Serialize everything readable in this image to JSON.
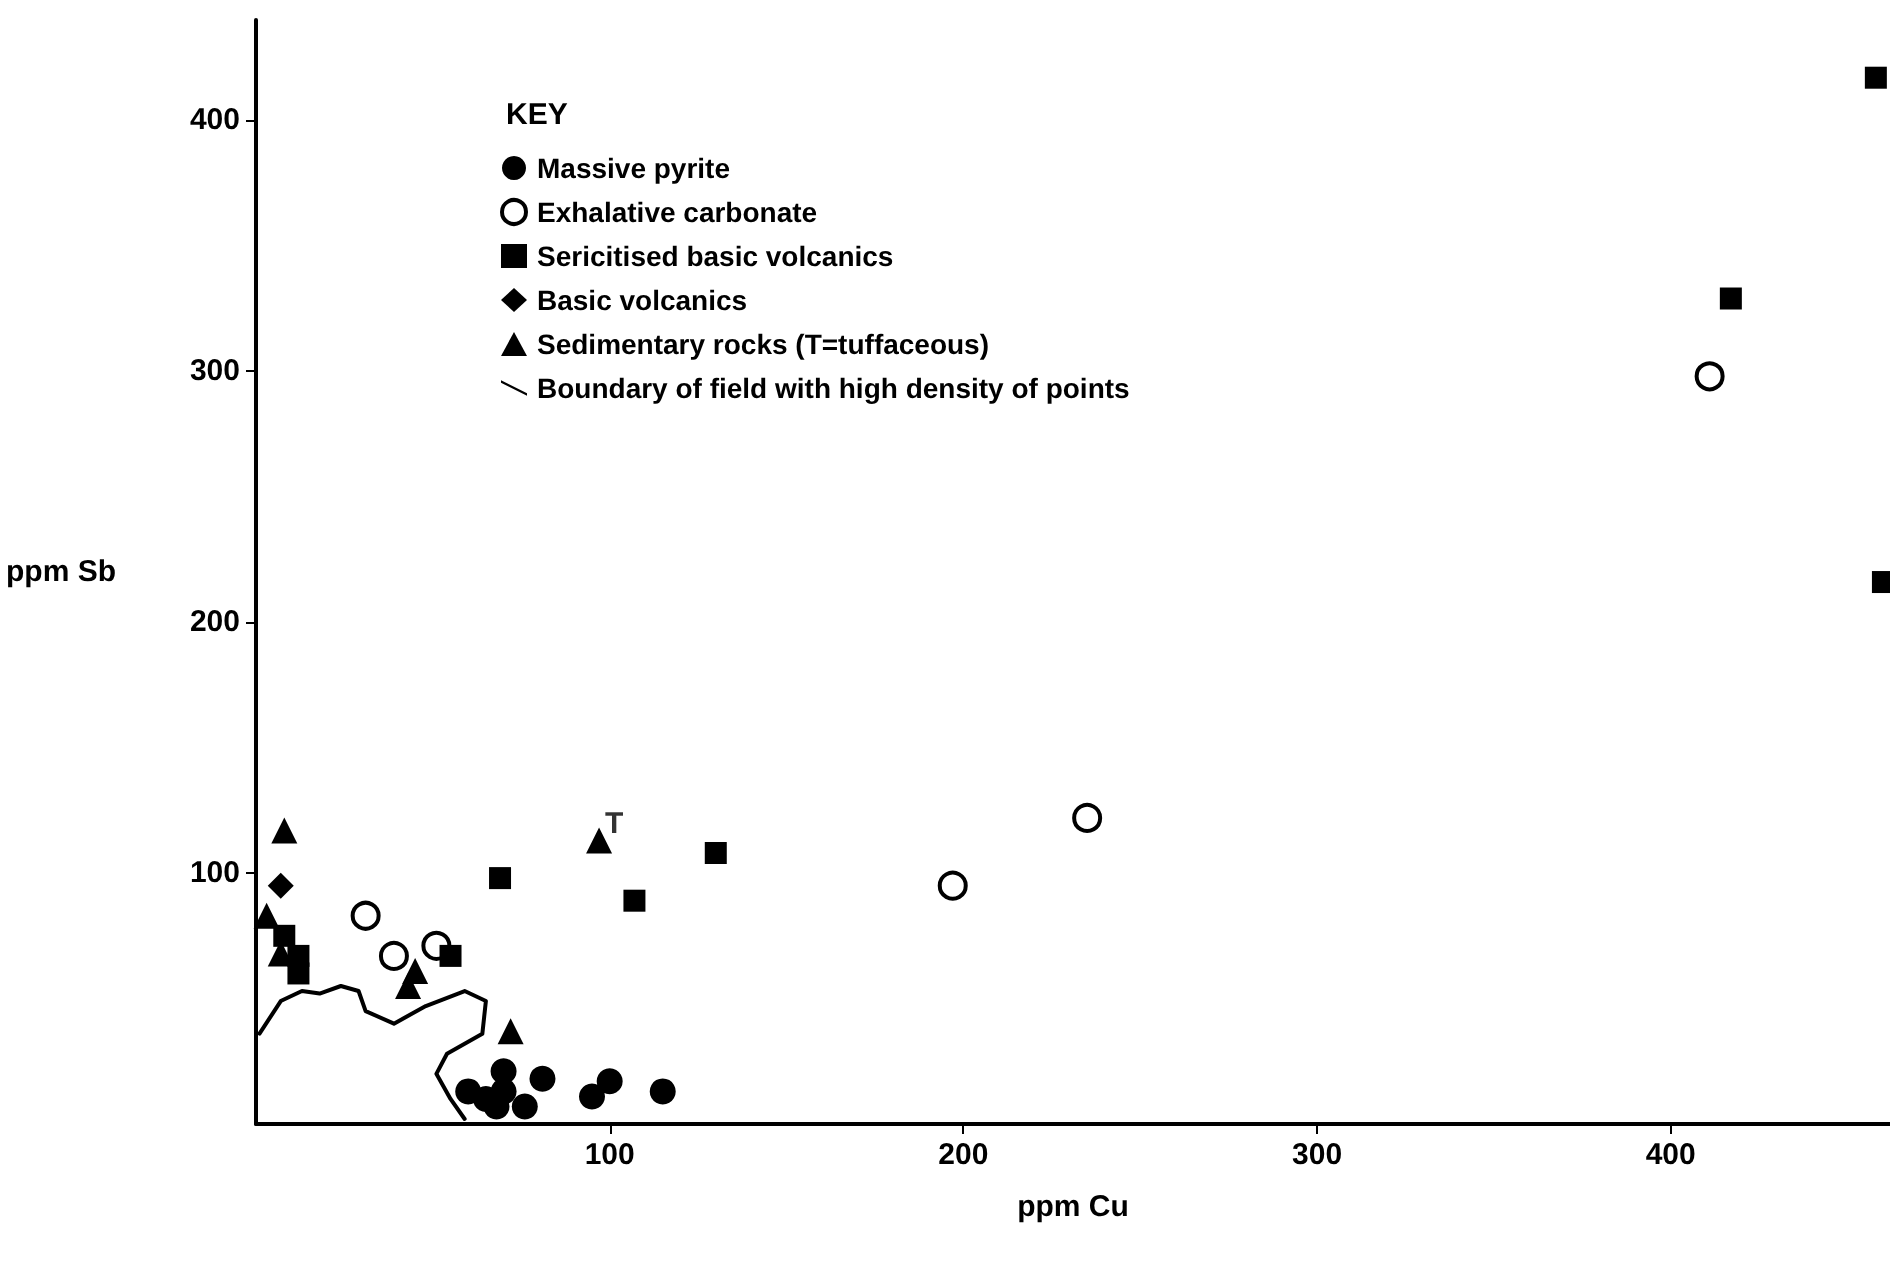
{
  "chart_data": {
    "type": "scatter",
    "xlabel": "ppm Cu",
    "ylabel": "ppm Sb",
    "legend_title": "KEY",
    "legend": "top left",
    "grid": false,
    "xlim": [
      0,
      462
    ],
    "ylim": [
      0,
      440
    ],
    "xticks": [
      100,
      200,
      300,
      400
    ],
    "yticks": [
      100,
      200,
      300,
      400
    ],
    "annotations": [
      {
        "text": "T",
        "x": 97,
        "y": 113
      }
    ],
    "series": [
      {
        "name": "Massive pyrite",
        "color": "#000000",
        "marker": "circle",
        "x": [
          60,
          65,
          70,
          70,
          73,
          76,
          81,
          95,
          100,
          115,
          68
        ],
        "values": [
          13,
          10,
          21,
          13,
          null,
          7,
          18,
          11,
          17,
          13,
          7
        ]
      },
      {
        "name": "Exhalative carbonate",
        "color": "#000000",
        "marker": "open circle",
        "x": [
          31,
          39,
          51,
          197,
          235,
          411
        ],
        "values": [
          83,
          67,
          71,
          95,
          122,
          298
        ]
      },
      {
        "name": "Sericitised basic volcanics",
        "color": "#000000",
        "marker": "square",
        "x": [
          8,
          12,
          12,
          55,
          69,
          107,
          130,
          417,
          458,
          460
        ],
        "values": [
          75,
          67,
          60,
          67,
          98,
          89,
          108,
          329,
          417,
          216
        ]
      },
      {
        "name": "Basic volcanics",
        "color": "#000000",
        "marker": "diamond",
        "x": [
          7
        ],
        "values": [
          95
        ]
      },
      {
        "name": "Sedimentary rocks (T=tuffaceous)",
        "color": "#000000",
        "marker": "triangle",
        "x": [
          8,
          3,
          7,
          45,
          43,
          72,
          97
        ],
        "values": [
          117,
          83,
          68,
          61,
          55,
          37,
          113
        ]
      },
      {
        "name": "Boundary of field with high density of points",
        "type": "line",
        "color": "#000000",
        "marker": "none",
        "line_style": "solid",
        "x": [
          1,
          7,
          13,
          18,
          24,
          29,
          31,
          39,
          48,
          59,
          65,
          64,
          54,
          51,
          55,
          59
        ],
        "values": [
          36,
          49,
          53,
          52,
          55,
          53,
          45,
          40,
          47,
          53,
          49,
          36,
          28,
          20,
          10,
          2
        ]
      }
    ]
  }
}
